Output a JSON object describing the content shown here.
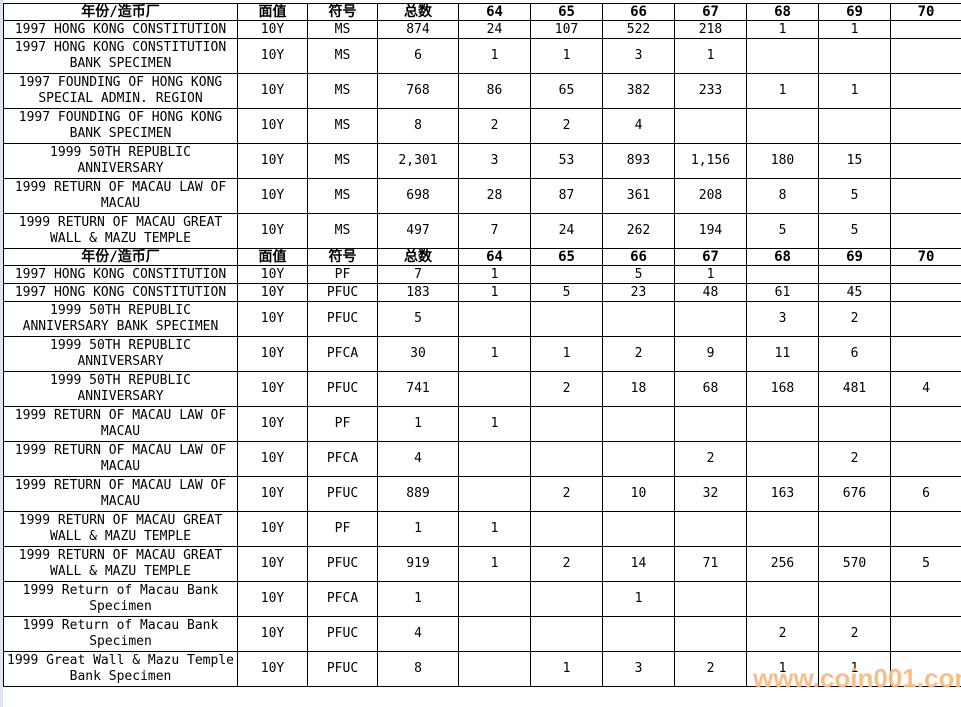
{
  "table": {
    "columns": [
      "年份/造币厂",
      "面值",
      "符号",
      "总数",
      "64",
      "65",
      "66",
      "67",
      "68",
      "69",
      "70"
    ],
    "sections": [
      {
        "rows": [
          [
            "1997 HONG KONG CONSTITUTION",
            "10Y",
            "MS",
            "874",
            "24",
            "107",
            "522",
            "218",
            "1",
            "1",
            ""
          ],
          [
            "1997 HONG KONG CONSTITUTION BANK SPECIMEN",
            "10Y",
            "MS",
            "6",
            "1",
            "1",
            "3",
            "1",
            "",
            "",
            ""
          ],
          [
            "1997 FOUNDING OF HONG KONG SPECIAL ADMIN. REGION",
            "10Y",
            "MS",
            "768",
            "86",
            "65",
            "382",
            "233",
            "1",
            "1",
            ""
          ],
          [
            "1997 FOUNDING OF HONG KONG BANK SPECIMEN",
            "10Y",
            "MS",
            "8",
            "2",
            "2",
            "4",
            "",
            "",
            "",
            ""
          ],
          [
            "1999 50TH REPUBLIC ANNIVERSARY",
            "10Y",
            "MS",
            "2,301",
            "3",
            "53",
            "893",
            "1,156",
            "180",
            "15",
            ""
          ],
          [
            "1999 RETURN OF MACAU LAW OF MACAU",
            "10Y",
            "MS",
            "698",
            "28",
            "87",
            "361",
            "208",
            "8",
            "5",
            ""
          ],
          [
            "1999 RETURN OF MACAU GREAT WALL & MAZU TEMPLE",
            "10Y",
            "MS",
            "497",
            "7",
            "24",
            "262",
            "194",
            "5",
            "5",
            ""
          ]
        ]
      },
      {
        "rows": [
          [
            "1997 HONG KONG CONSTITUTION",
            "10Y",
            "PF",
            "7",
            "1",
            "",
            "5",
            "1",
            "",
            "",
            ""
          ],
          [
            "1997 HONG KONG CONSTITUTION",
            "10Y",
            "PFUC",
            "183",
            "1",
            "5",
            "23",
            "48",
            "61",
            "45",
            ""
          ],
          [
            "1999 50TH REPUBLIC ANNIVERSARY BANK SPECIMEN",
            "10Y",
            "PFUC",
            "5",
            "",
            "",
            "",
            "",
            "3",
            "2",
            ""
          ],
          [
            "1999 50TH REPUBLIC ANNIVERSARY",
            "10Y",
            "PFCA",
            "30",
            "1",
            "1",
            "2",
            "9",
            "11",
            "6",
            ""
          ],
          [
            "1999 50TH REPUBLIC ANNIVERSARY",
            "10Y",
            "PFUC",
            "741",
            "",
            "2",
            "18",
            "68",
            "168",
            "481",
            "4"
          ],
          [
            "1999 RETURN OF MACAU LAW OF MACAU",
            "10Y",
            "PF",
            "1",
            "1",
            "",
            "",
            "",
            "",
            "",
            ""
          ],
          [
            "1999 RETURN OF MACAU LAW OF MACAU",
            "10Y",
            "PFCA",
            "4",
            "",
            "",
            "",
            "2",
            "",
            "2",
            ""
          ],
          [
            "1999 RETURN OF MACAU LAW OF MACAU",
            "10Y",
            "PFUC",
            "889",
            "",
            "2",
            "10",
            "32",
            "163",
            "676",
            "6"
          ],
          [
            "1999 RETURN OF MACAU GREAT WALL & MAZU TEMPLE",
            "10Y",
            "PF",
            "1",
            "1",
            "",
            "",
            "",
            "",
            "",
            ""
          ],
          [
            "1999 RETURN OF MACAU GREAT WALL & MAZU TEMPLE",
            "10Y",
            "PFUC",
            "919",
            "1",
            "2",
            "14",
            "71",
            "256",
            "570",
            "5"
          ],
          [
            "1999 Return of Macau Bank Specimen",
            "10Y",
            "PFCA",
            "1",
            "",
            "",
            "1",
            "",
            "",
            "",
            ""
          ],
          [
            "1999 Return of Macau Bank Specimen",
            "10Y",
            "PFUC",
            "4",
            "",
            "",
            "",
            "",
            "2",
            "2",
            ""
          ],
          [
            "1999 Great Wall & Mazu Temple Bank Specimen",
            "10Y",
            "PFUC",
            "8",
            "",
            "1",
            "3",
            "2",
            "1",
            "1",
            ""
          ]
        ]
      }
    ]
  },
  "watermark": {
    "text": "www.coin001.com",
    "color": "#f8bb83"
  }
}
